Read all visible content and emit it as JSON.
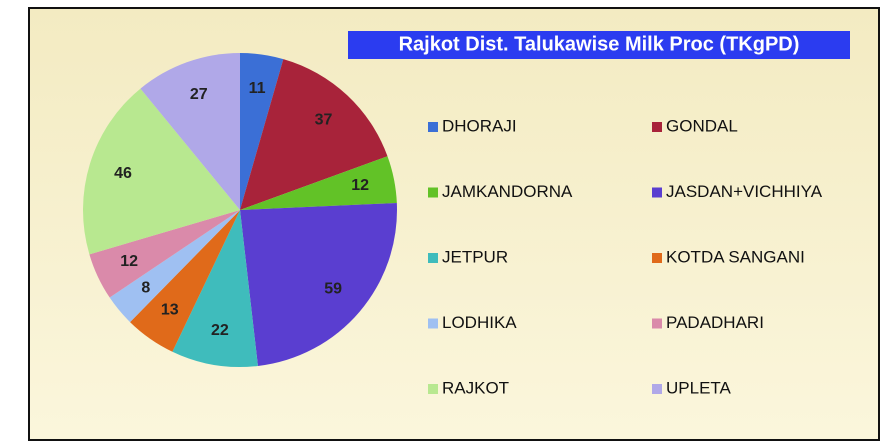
{
  "chart_data": {
    "type": "pie",
    "title": "Rajkot Dist. Talukawise Milk Proc (TKgPD)",
    "categories": [
      "DHORAJI",
      "GONDAL",
      "JAMKANDORNA",
      "JASDAN+VICHHIYA",
      "JETPUR",
      "KOTDA SANGANI",
      "LODHIKA",
      "PADADHARI",
      "RAJKOT",
      "UPLETA"
    ],
    "values": [
      11,
      37,
      12,
      59,
      22,
      13,
      8,
      12,
      46,
      27
    ],
    "colors": [
      "#3b6fd6",
      "#a8233a",
      "#62c227",
      "#5a3ed0",
      "#3fbcbc",
      "#e06a1a",
      "#9fc0f2",
      "#da8aaa",
      "#b8e890",
      "#b0a8e8"
    ],
    "legend": "right"
  }
}
